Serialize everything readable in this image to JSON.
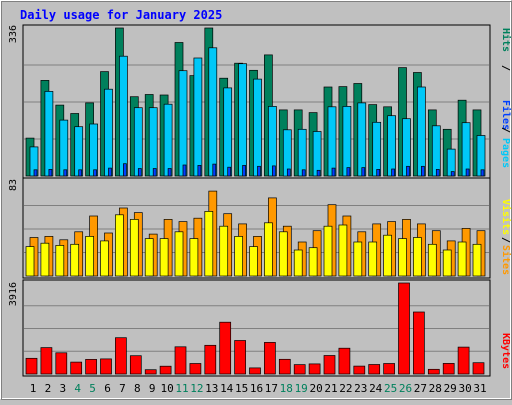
{
  "chart_data": {
    "type": "bar",
    "title": "Daily usage for January 2025",
    "categories": [
      "1",
      "2",
      "3",
      "4",
      "5",
      "6",
      "7",
      "8",
      "9",
      "10",
      "11",
      "12",
      "13",
      "14",
      "15",
      "16",
      "17",
      "18",
      "19",
      "20",
      "21",
      "22",
      "23",
      "24",
      "25",
      "26",
      "27",
      "28",
      "29",
      "30",
      "31"
    ],
    "weekend_days": [
      "4",
      "5",
      "11",
      "12",
      "18",
      "19",
      "25",
      "26"
    ],
    "panels": [
      {
        "id": "top",
        "max_label": "336",
        "ylim": [
          0,
          336
        ],
        "legend": [
          "Pages",
          "Files",
          "Hits"
        ],
        "series": [
          {
            "name": "Hits",
            "color": "#00805c",
            "values": [
              86,
              217,
              161,
              142,
              166,
              237,
              336,
              180,
              185,
              184,
              303,
              228,
              336,
              222,
              256,
              240,
              275,
              150,
              150,
              144,
              202,
              203,
              210,
              162,
              157,
              246,
              235,
              150,
              106,
              172,
              150
            ]
          },
          {
            "name": "Files",
            "color": "#00c8f8",
            "values": [
              66,
              192,
              127,
              112,
              118,
              197,
              272,
              155,
              155,
              163,
              239,
              268,
              291,
              200,
              255,
              220,
              158,
              105,
              106,
              101,
              157,
              158,
              166,
              122,
              137,
              130,
              202,
              114,
              61,
              121,
              92
            ]
          },
          {
            "name": "Pages",
            "color": "#0040ff",
            "values": [
              14,
              15,
              14,
              14,
              14,
              18,
              28,
              17,
              17,
              17,
              25,
              24,
              27,
              20,
              24,
              22,
              23,
              16,
              14,
              13,
              18,
              19,
              19,
              15,
              16,
              22,
              22,
              15,
              10,
              16,
              14
            ]
          }
        ]
      },
      {
        "id": "mid",
        "max_label": "83",
        "ylim": [
          0,
          83
        ],
        "legend": [
          "Sites",
          "/",
          "Visits"
        ],
        "series": [
          {
            "name": "Visits",
            "color": "#ff9900",
            "values": [
              34,
              35,
              32,
              39,
              53,
              38,
              60,
              56,
              37,
              50,
              48,
              51,
              75,
              55,
              46,
              35,
              69,
              44,
              30,
              40,
              63,
              53,
              39,
              46,
              48,
              50,
              46,
              40,
              31,
              42,
              40
            ]
          },
          {
            "name": "Sites",
            "color": "#ffff00",
            "values": [
              26,
              29,
              27,
              28,
              35,
              31,
              54,
              50,
              33,
              33,
              39,
              33,
              57,
              44,
              35,
              26,
              47,
              39,
              23,
              25,
              44,
              45,
              30,
              30,
              36,
              33,
              34,
              28,
              23,
              30,
              28
            ]
          }
        ]
      },
      {
        "id": "bottom",
        "max_label": "3916",
        "ylim": [
          0,
          3916
        ],
        "legend": [
          "KBytes"
        ],
        "series": [
          {
            "name": "KBytes",
            "color": "#ff0000",
            "values": [
              675,
              1137,
              911,
              513,
              630,
              649,
              1563,
              787,
              186,
              335,
              1172,
              450,
              1233,
              2230,
              1441,
              262,
              1361,
              634,
              406,
              433,
              795,
              1112,
              338,
              408,
              450,
              3916,
              2668,
              201,
              454,
              1156,
              486
            ]
          }
        ]
      }
    ]
  },
  "colors": {
    "background": "#c0c0c0",
    "plot_background": "#c0c0c0",
    "title": "#0000ff",
    "weekend_label": "#00805c",
    "weekday_label": "#000000",
    "gridline": "#808080",
    "legend_separator": "#000000"
  }
}
